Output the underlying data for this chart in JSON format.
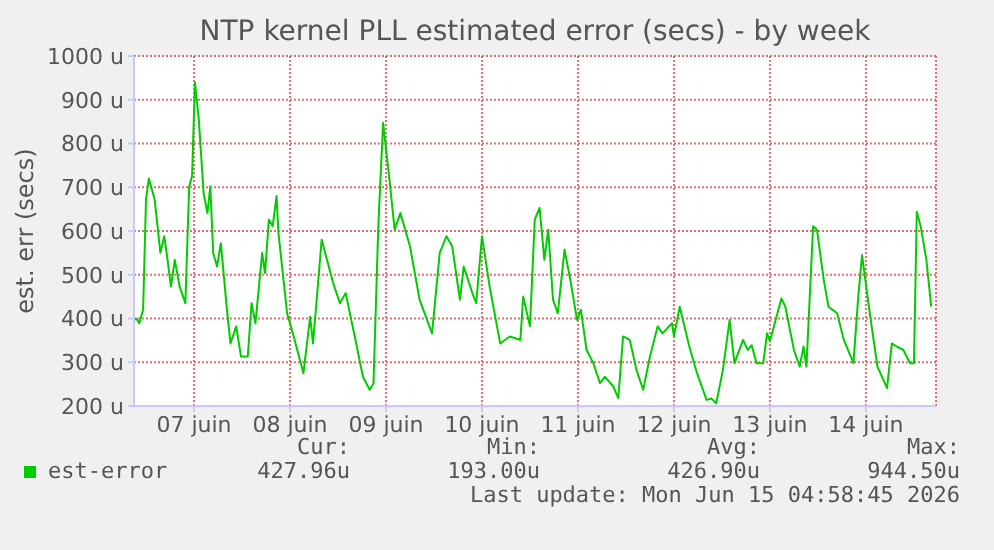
{
  "chart_data": {
    "type": "line",
    "title": "NTP kernel PLL estimated error (secs) - by week",
    "ylabel": "est. err (secs)",
    "xlim": [
      6.875,
      15.23
    ],
    "ylim": [
      200,
      1000
    ],
    "xticks": [
      {
        "value": 7.5,
        "label": "07 juin"
      },
      {
        "value": 8.5,
        "label": "08 juin"
      },
      {
        "value": 9.5,
        "label": "09 juin"
      },
      {
        "value": 10.5,
        "label": "10 juin"
      },
      {
        "value": 11.5,
        "label": "11 juin"
      },
      {
        "value": 12.5,
        "label": "12 juin"
      },
      {
        "value": 13.5,
        "label": "13 juin"
      },
      {
        "value": 14.5,
        "label": "14 juin"
      }
    ],
    "yticks": [
      {
        "value": 200,
        "label": "200 u"
      },
      {
        "value": 300,
        "label": "300 u"
      },
      {
        "value": 400,
        "label": "400 u"
      },
      {
        "value": 500,
        "label": "500 u"
      },
      {
        "value": 600,
        "label": "600 u"
      },
      {
        "value": 700,
        "label": "700 u"
      },
      {
        "value": 800,
        "label": "800 u"
      },
      {
        "value": 900,
        "label": "900 u"
      },
      {
        "value": 1000,
        "label": "1000 u"
      }
    ],
    "grid": true,
    "legend": "bottom",
    "marker": "none",
    "line_style": "solid",
    "x": [
      6.88,
      6.9,
      6.93,
      6.97,
      7.0,
      7.03,
      7.09,
      7.15,
      7.19,
      7.22,
      7.26,
      7.3,
      7.35,
      7.41,
      7.45,
      7.48,
      7.51,
      7.55,
      7.6,
      7.64,
      7.67,
      7.7,
      7.74,
      7.78,
      7.84,
      7.88,
      7.94,
      7.99,
      8.06,
      8.1,
      8.14,
      8.21,
      8.24,
      8.28,
      8.32,
      8.36,
      8.38,
      8.47,
      8.53,
      8.64,
      8.71,
      8.74,
      8.83,
      8.95,
      9.02,
      9.08,
      9.19,
      9.26,
      9.33,
      9.37,
      9.42,
      9.47,
      9.54,
      9.59,
      9.65,
      9.75,
      9.85,
      9.98,
      10.06,
      10.13,
      10.19,
      10.27,
      10.31,
      10.4,
      10.44,
      10.5,
      10.58,
      10.69,
      10.79,
      10.9,
      10.93,
      11.0,
      11.05,
      11.1,
      11.15,
      11.19,
      11.24,
      11.29,
      11.36,
      11.42,
      11.49,
      11.53,
      11.59,
      11.66,
      11.73,
      11.78,
      11.87,
      11.92,
      11.97,
      12.04,
      12.11,
      12.18,
      12.25,
      12.33,
      12.38,
      12.48,
      12.5,
      12.56,
      12.66,
      12.74,
      12.84,
      12.89,
      12.94,
      13.01,
      13.08,
      13.13,
      13.22,
      13.27,
      13.31,
      13.36,
      13.43,
      13.47,
      13.5,
      13.57,
      13.62,
      13.66,
      13.75,
      13.81,
      13.85,
      13.88,
      13.95,
      13.99,
      14.06,
      14.11,
      14.2,
      14.27,
      14.37,
      14.42,
      14.46,
      14.54,
      14.62,
      14.72,
      14.77,
      14.82,
      14.89,
      14.96,
      15.0,
      15.03,
      15.07,
      15.13,
      15.18
    ],
    "series": [
      {
        "name": "est-error",
        "color": "#00cc00",
        "values": [
          397,
          400,
          389,
          420,
          672,
          720,
          672,
          550,
          588,
          542,
          473,
          534,
          473,
          435,
          702,
          725,
          940,
          855,
          687,
          641,
          702,
          550,
          519,
          572,
          427,
          343,
          382,
          313,
          313,
          435,
          389,
          550,
          504,
          626,
          611,
          680,
          595,
          412,
          366,
          275,
          404,
          343,
          580,
          481,
          435,
          458,
          343,
          267,
          237,
          252,
          611,
          847,
          710,
          603,
          641,
          565,
          443,
          366,
          550,
          588,
          565,
          443,
          519,
          458,
          435,
          588,
          473,
          343,
          359,
          351,
          450,
          382,
          626,
          653,
          534,
          603,
          443,
          412,
          557,
          489,
          397,
          420,
          328,
          298,
          252,
          267,
          244,
          218,
          359,
          351,
          282,
          237,
          313,
          382,
          366,
          389,
          359,
          427,
          336,
          275,
          214,
          217,
          206,
          282,
          397,
          298,
          351,
          328,
          339,
          298,
          298,
          366,
          348,
          405,
          446,
          427,
          328,
          290,
          336,
          290,
          611,
          603,
          489,
          427,
          412,
          351,
          298,
          450,
          545,
          412,
          290,
          241,
          343,
          336,
          328,
          298,
          298,
          644,
          611,
          534,
          427
        ]
      }
    ],
    "annotations": [
      "Cur:",
      "427.96u",
      "Min:",
      "193.00u",
      "Avg:",
      "426.90u",
      "Max:",
      "944.50u",
      "Last update: Mon Jun 15 04:58:45 2026"
    ]
  }
}
